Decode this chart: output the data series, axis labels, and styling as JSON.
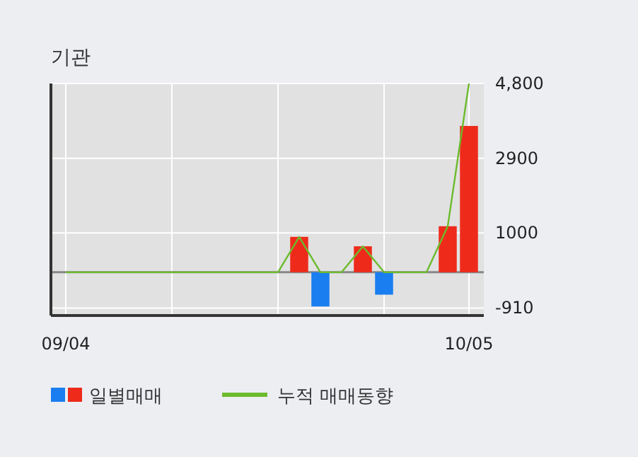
{
  "chart_data": {
    "type": "bar",
    "title": "기관",
    "categories": [
      "09/04",
      null,
      null,
      null,
      null,
      null,
      null,
      null,
      null,
      null,
      null,
      null,
      null,
      null,
      null,
      null,
      null,
      null,
      null,
      "10/05"
    ],
    "series": [
      {
        "name": "일별매매",
        "values": [
          0,
          0,
          0,
          0,
          0,
          0,
          0,
          0,
          0,
          0,
          0,
          900,
          -870,
          0,
          660,
          -570,
          0,
          0,
          1170,
          3720
        ],
        "colors": [
          "#ee2b1b",
          "#ee2b1b",
          "#ee2b1b",
          "#ee2b1b",
          "#ee2b1b",
          "#ee2b1b",
          "#ee2b1b",
          "#ee2b1b",
          "#ee2b1b",
          "#ee2b1b",
          "#ee2b1b",
          "#ee2b1b",
          "#1a7ef0",
          "#ee2b1b",
          "#ee2b1b",
          "#1a7ef0",
          "#ee2b1b",
          "#ee2b1b",
          "#ee2b1b",
          "#ee2b1b"
        ]
      },
      {
        "name": "누적 매매동향",
        "type": "line",
        "color": "#6cbb2c",
        "values": [
          0,
          0,
          0,
          0,
          0,
          0,
          0,
          0,
          0,
          0,
          0,
          900,
          0,
          0,
          660,
          0,
          0,
          0,
          1170,
          4800
        ]
      }
    ],
    "ylim": [
      -1100,
      4800
    ],
    "yticks": [
      {
        "value": 4800,
        "label": "4,800"
      },
      2900,
      1000,
      -910
    ],
    "grid": true,
    "legend": "bottom"
  }
}
